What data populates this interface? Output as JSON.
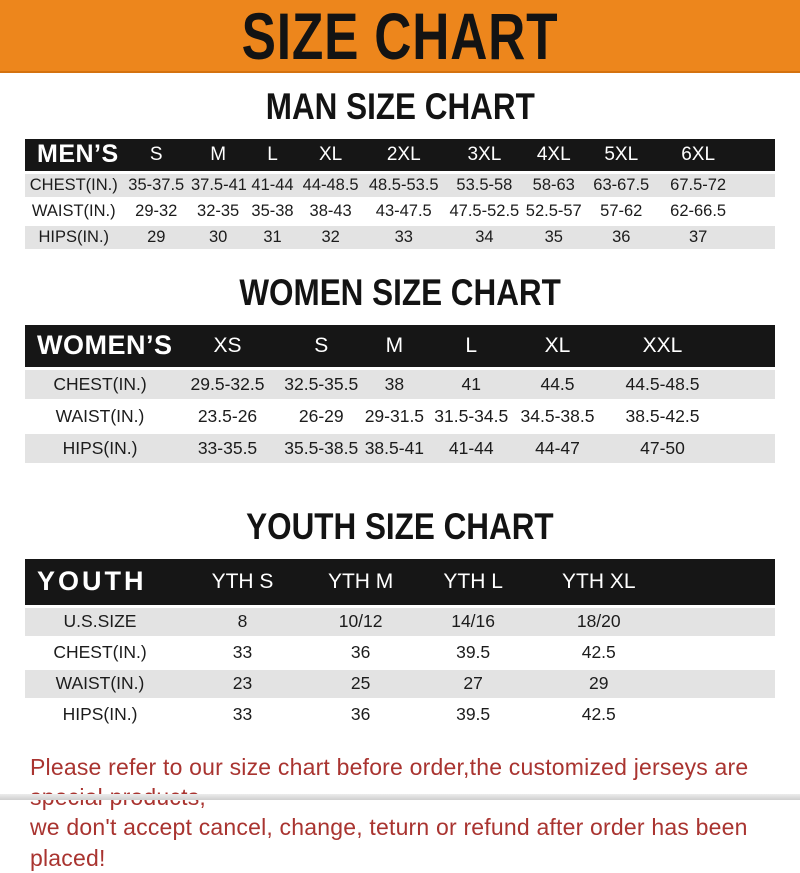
{
  "banner": {
    "title": "SIZE CHART"
  },
  "men": {
    "title": "MAN SIZE CHART",
    "header": [
      "MEN’S",
      "S",
      "M",
      "L",
      "XL",
      "2XL",
      "3XL",
      "4XL",
      "5XL",
      "6XL"
    ],
    "rows": [
      [
        "CHEST(IN.)",
        "35-37.5",
        "37.5-41",
        "41-44",
        "44-48.5",
        "48.5-53.5",
        "53.5-58",
        "58-63",
        "63-67.5",
        "67.5-72"
      ],
      [
        "WAIST(IN.)",
        "29-32",
        "32-35",
        "35-38",
        "38-43",
        "43-47.5",
        "47.5-52.5",
        "52.5-57",
        "57-62",
        "62-66.5"
      ],
      [
        "HIPS(IN.)",
        "29",
        "30",
        "31",
        "32",
        "33",
        "34",
        "35",
        "36",
        "37"
      ]
    ]
  },
  "women": {
    "title": "WOMEN SIZE CHART",
    "header": [
      "WOMEN’S",
      "XS",
      "S",
      "M",
      "L",
      "XL",
      "XXL"
    ],
    "rows": [
      [
        "CHEST(IN.)",
        "29.5-32.5",
        "32.5-35.5",
        "38",
        "41",
        "44.5",
        "44.5-48.5"
      ],
      [
        "WAIST(IN.)",
        "23.5-26",
        "26-29",
        "29-31.5",
        "31.5-34.5",
        "34.5-38.5",
        "38.5-42.5"
      ],
      [
        "HIPS(IN.)",
        "33-35.5",
        "35.5-38.5",
        "38.5-41",
        "41-44",
        "44-47",
        "47-50"
      ]
    ]
  },
  "youth": {
    "title": "YOUTH SIZE CHART",
    "header": [
      "YOUTH",
      "YTH S",
      "YTH M",
      "YTH L",
      "YTH XL"
    ],
    "rows": [
      [
        "U.S.SIZE",
        "8",
        "10/12",
        "14/16",
        "18/20"
      ],
      [
        "CHEST(IN.)",
        "33",
        "36",
        "39.5",
        "42.5"
      ],
      [
        "WAIST(IN.)",
        "23",
        "25",
        "27",
        "29"
      ],
      [
        "HIPS(IN.)",
        "33",
        "36",
        "39.5",
        "42.5"
      ]
    ]
  },
  "footer": {
    "line1": "Please refer to our size chart before order,the customized jerseys are special products,",
    "line2": "we don't accept cancel, change, teturn or refund after order has been placed!"
  },
  "colors": {
    "accent_orange": "#ED861C",
    "header_black": "#161616",
    "row_gray": "#E3E3E3",
    "footer_red": "#A93430"
  }
}
